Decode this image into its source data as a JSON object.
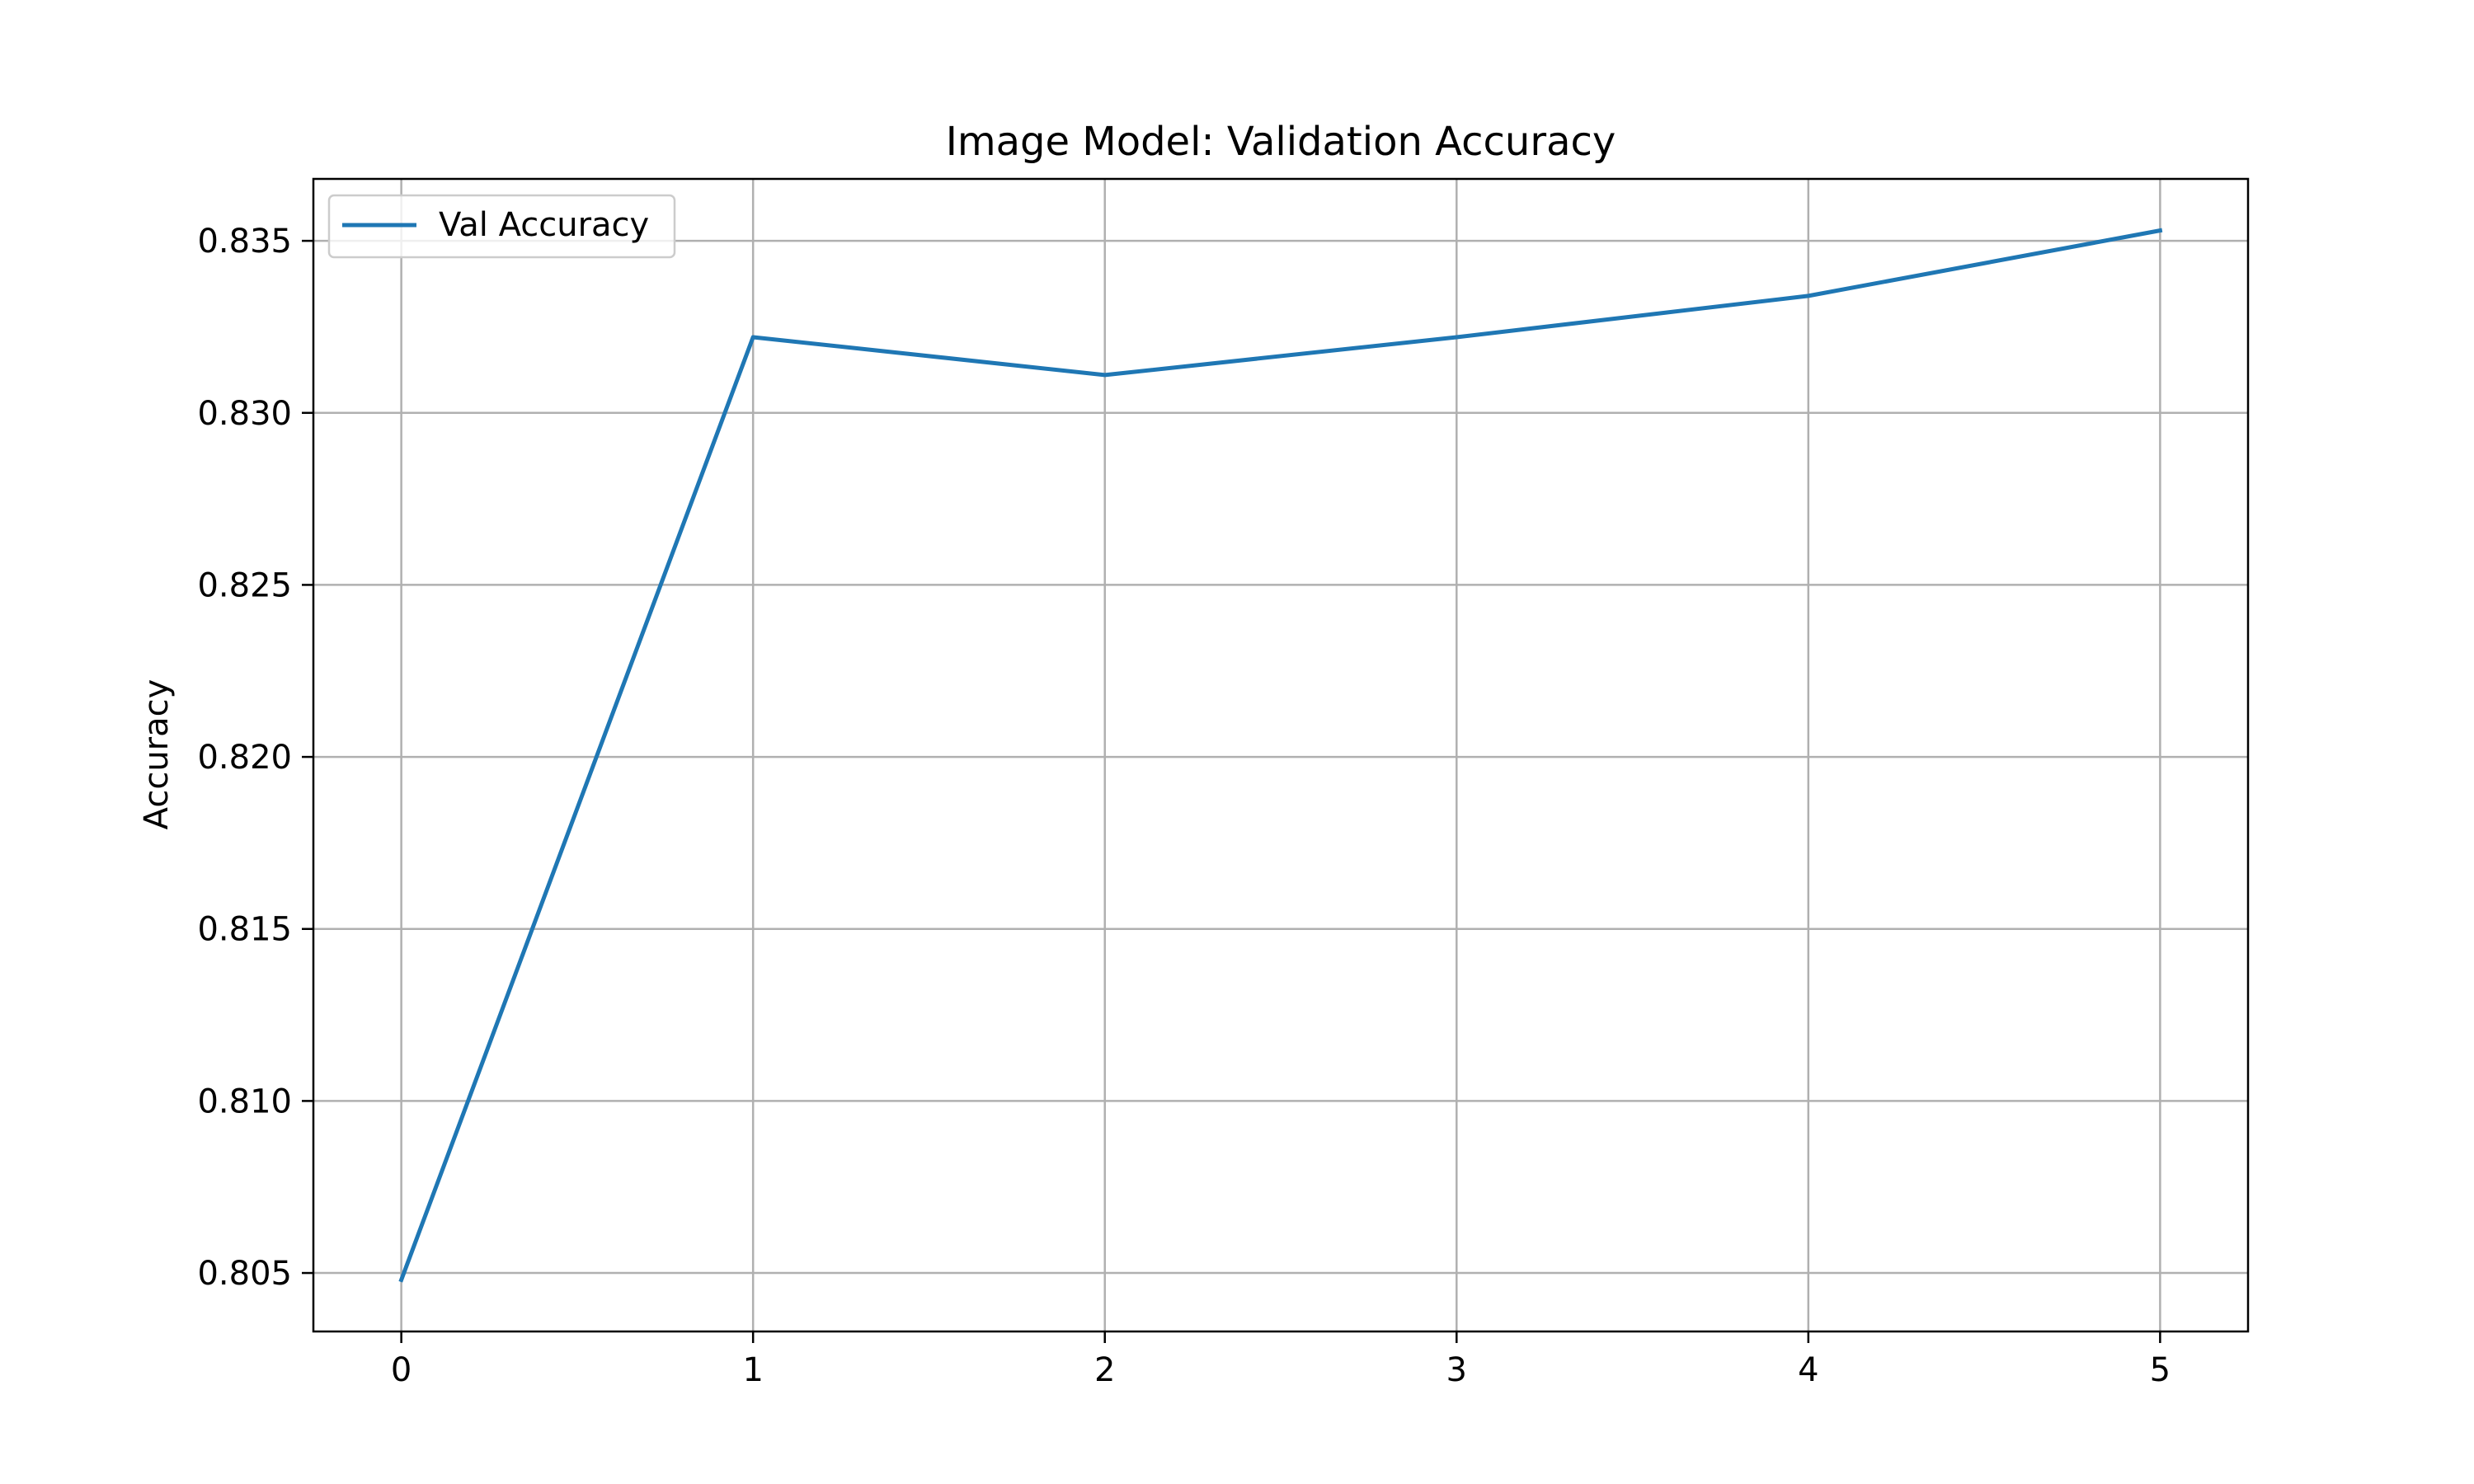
{
  "chart_data": {
    "type": "line",
    "title": "Image Model: Validation Accuracy",
    "xlabel": "",
    "ylabel": "Accuracy",
    "x": [
      0,
      1,
      2,
      3,
      4,
      5
    ],
    "series": [
      {
        "name": "Val Accuracy",
        "color": "#1f77b4",
        "values": [
          0.8048,
          0.8322,
          0.8311,
          0.8322,
          0.8334,
          0.8353
        ]
      }
    ],
    "xticks": [
      "0",
      "1",
      "2",
      "3",
      "4",
      "5"
    ],
    "yticks": [
      "0.805",
      "0.810",
      "0.815",
      "0.820",
      "0.825",
      "0.830",
      "0.835"
    ],
    "xlim": [
      -0.25,
      5.25
    ],
    "ylim": [
      0.8033,
      0.8368
    ],
    "grid": true,
    "legend_position": "top-left"
  }
}
